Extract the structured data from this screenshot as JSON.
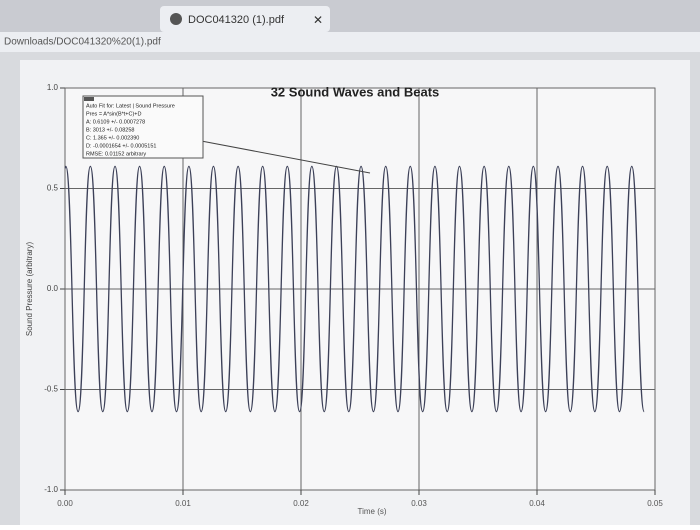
{
  "browser": {
    "tab_title": "DOC041320 (1).pdf",
    "url": "Downloads/DOC041320%20(1).pdf"
  },
  "chart_data": {
    "type": "line",
    "title": "32 Sound Waves and Beats",
    "x_label": "Time (s)",
    "y_label": "Sound Pressure (arbitrary)",
    "annotation": [
      "Auto Fit for: Latest | Sound Pressure",
      "Pres = A*sin(B*t+C)+D",
      "A: 0.6109 +/- 0.0007278",
      "B: 3013 +/- 0.08258",
      "C: 1.365 +/- 0.002390",
      "D: -0.0001654 +/- 0.0005151",
      "RMSE: 0.01152 arbitrary"
    ],
    "xlim": [
      0,
      0.05
    ],
    "ylim": [
      -1,
      1
    ],
    "xticks": [
      {
        "value": 0,
        "label": "0.00"
      },
      0.01,
      0.02,
      0.03,
      0.04,
      0.05
    ],
    "yticks": [
      {
        "value": 1,
        "label": "1.0"
      },
      0.5,
      {
        "value": 0,
        "label": "0.0"
      },
      -0.5,
      {
        "value": -1,
        "label": "-1.0"
      }
    ],
    "grid": true,
    "series": [
      {
        "name": "Sound Pressure",
        "color": "#3c4058",
        "x": [
          0,
          7e-05,
          0.00111,
          0.00215,
          0.0032,
          0.00424,
          0.00528,
          0.00632,
          0.00737,
          0.00841,
          0.00945,
          0.0105,
          0.01154,
          0.01258,
          0.01362,
          0.01467,
          0.01571,
          0.01675,
          0.01779,
          0.01884,
          0.01988,
          0.02092,
          0.02197,
          0.02301,
          0.02405,
          0.02509,
          0.02614,
          0.02718,
          0.02822,
          0.02926,
          0.03031,
          0.03135,
          0.03239,
          0.03343,
          0.03448,
          0.03552,
          0.03656,
          0.03761,
          0.03865,
          0.03969,
          0.04073,
          0.04178,
          0.04282,
          0.04386,
          0.0449,
          0.04595,
          0.04699,
          0.04803,
          0.04908
        ],
        "values": [
          0.6,
          0.61,
          -0.61,
          0.61,
          -0.61,
          0.61,
          -0.61,
          0.61,
          -0.61,
          0.61,
          -0.61,
          0.61,
          -0.61,
          0.61,
          -0.61,
          0.61,
          -0.61,
          0.61,
          -0.61,
          0.61,
          -0.61,
          0.61,
          -0.61,
          0.61,
          -0.61,
          0.61,
          -0.61,
          0.61,
          -0.61,
          0.61,
          -0.61,
          0.61,
          -0.61,
          0.61,
          -0.61,
          0.61,
          -0.61,
          0.61,
          -0.61,
          0.61,
          -0.61,
          0.61,
          -0.61,
          0.61,
          -0.61,
          0.61,
          -0.61,
          0.61,
          -0.61
        ]
      }
    ]
  }
}
